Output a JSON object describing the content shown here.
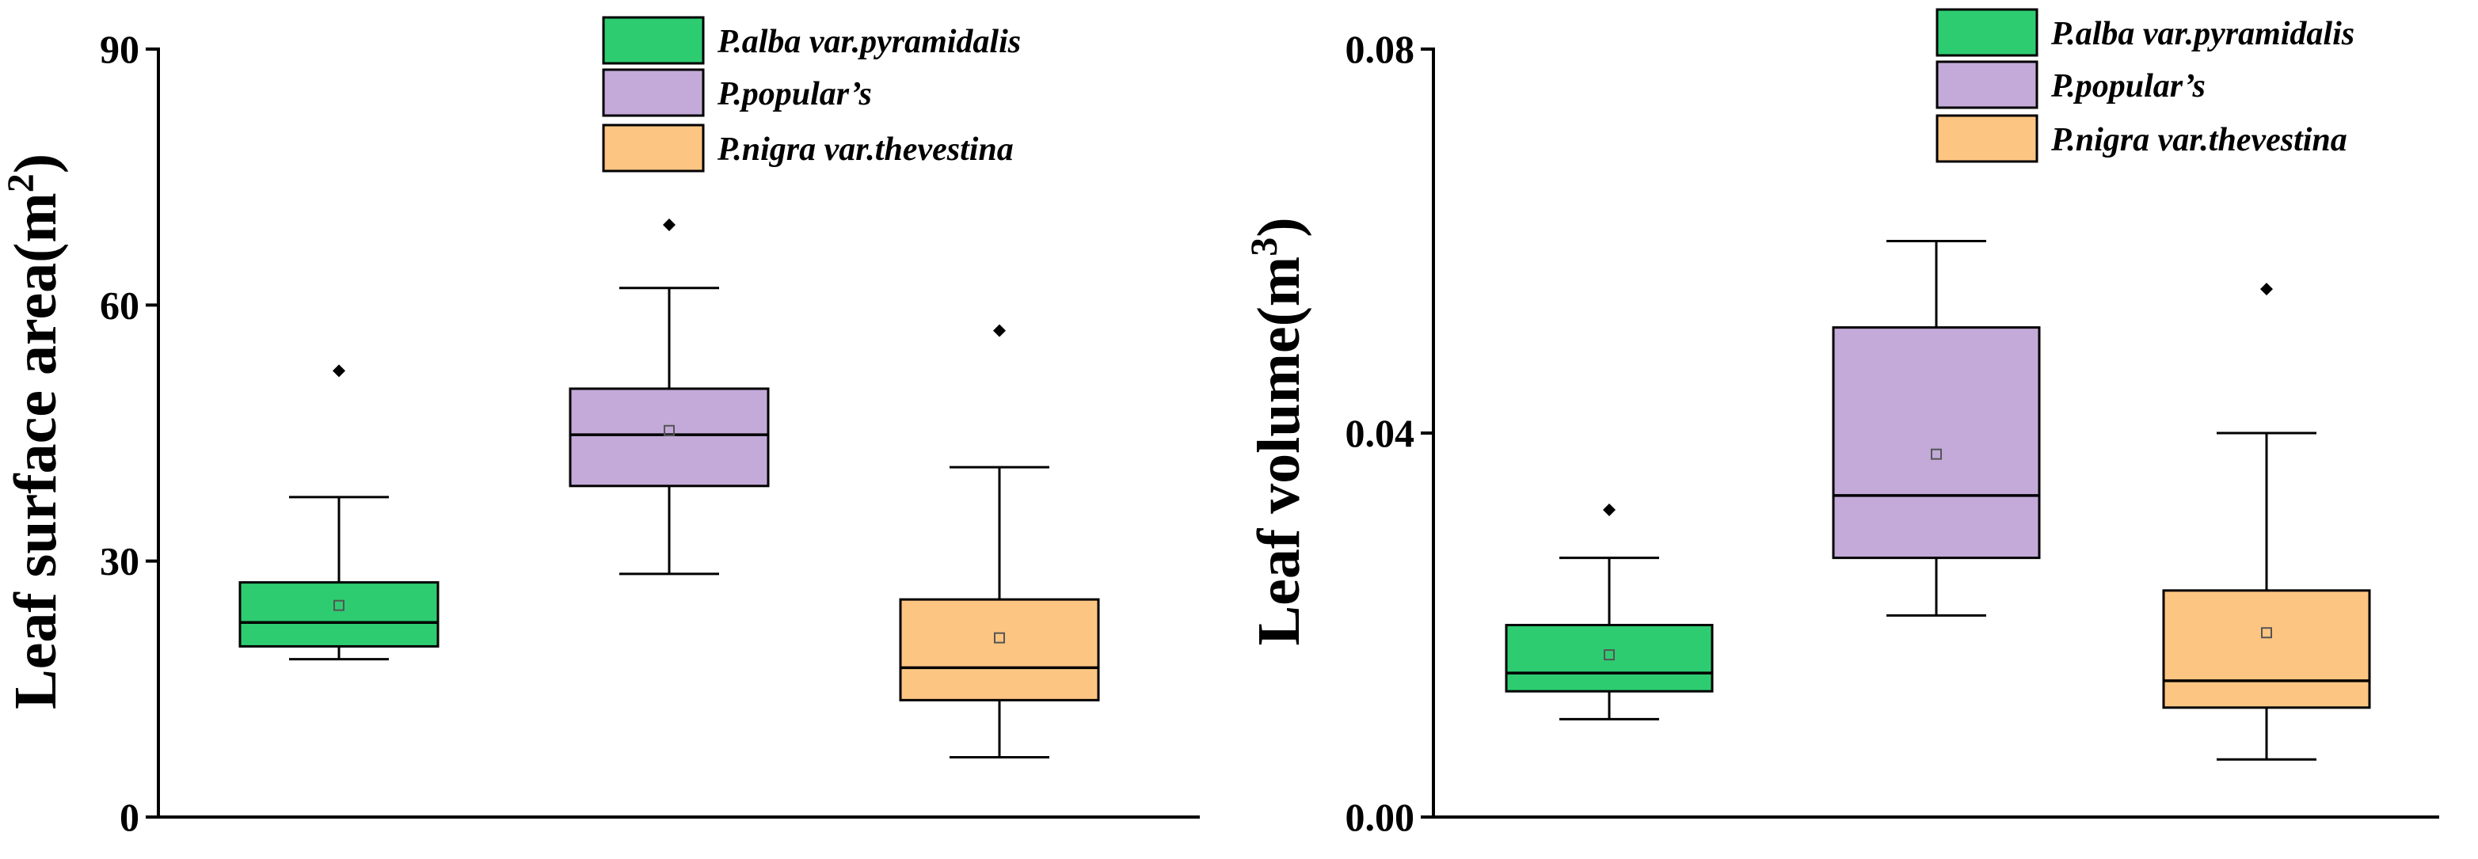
{
  "chart_data": [
    {
      "type": "box",
      "ylabel": "Leaf surface area(m",
      "ylabel_sup": "2",
      "ylabel_close": ")",
      "ylim": [
        0,
        90
      ],
      "yticks": [
        0,
        30,
        60,
        90
      ],
      "tick_labels": [
        "0",
        "30",
        "60",
        "90"
      ],
      "legend": [
        "P.alba var.pyramidalis",
        "P.popular’s",
        "P.nigra var.thevestina"
      ],
      "series": [
        {
          "name": "P.alba var.pyramidalis",
          "color": "#2ecc71",
          "min": 18.5,
          "q1": 20,
          "median": 22.8,
          "q3": 27.5,
          "max": 37.5,
          "mean": 24.8,
          "outliers": [
            52.3
          ]
        },
        {
          "name": "P.popular’s",
          "color": "#c3aad9",
          "min": 28.5,
          "q1": 38.8,
          "median": 44.8,
          "q3": 50.2,
          "max": 62,
          "mean": 45.3,
          "outliers": [
            69.4
          ]
        },
        {
          "name": "P.nigra var.thevestina",
          "color": "#fdc582",
          "min": 7,
          "q1": 13.7,
          "median": 17.5,
          "q3": 25.5,
          "max": 41,
          "mean": 21,
          "outliers": [
            57
          ]
        }
      ]
    },
    {
      "type": "box",
      "ylabel": "Leaf volume(m",
      "ylabel_sup": "3",
      "ylabel_close": ")",
      "ylim": [
        0,
        0.08
      ],
      "yticks": [
        0,
        0.04,
        0.08
      ],
      "tick_labels": [
        "0.00",
        "0.04",
        "0.08"
      ],
      "legend": [
        "P.alba var.pyramidalis",
        "P.popular’s",
        "P.nigra var.thevestina"
      ],
      "series": [
        {
          "name": "P.alba var.pyramidalis",
          "color": "#2ecc71",
          "min": 0.0102,
          "q1": 0.0131,
          "median": 0.015,
          "q3": 0.02,
          "max": 0.027,
          "mean": 0.0169,
          "outliers": [
            0.032
          ]
        },
        {
          "name": "P.popular’s",
          "color": "#c3aad9",
          "min": 0.021,
          "q1": 0.027,
          "median": 0.0335,
          "q3": 0.051,
          "max": 0.06,
          "mean": 0.0378,
          "outliers": []
        },
        {
          "name": "P.nigra var.thevestina",
          "color": "#fdc582",
          "min": 0.006,
          "q1": 0.0114,
          "median": 0.0142,
          "q3": 0.0236,
          "max": 0.04,
          "mean": 0.0192,
          "outliers": [
            0.055
          ]
        }
      ]
    }
  ]
}
